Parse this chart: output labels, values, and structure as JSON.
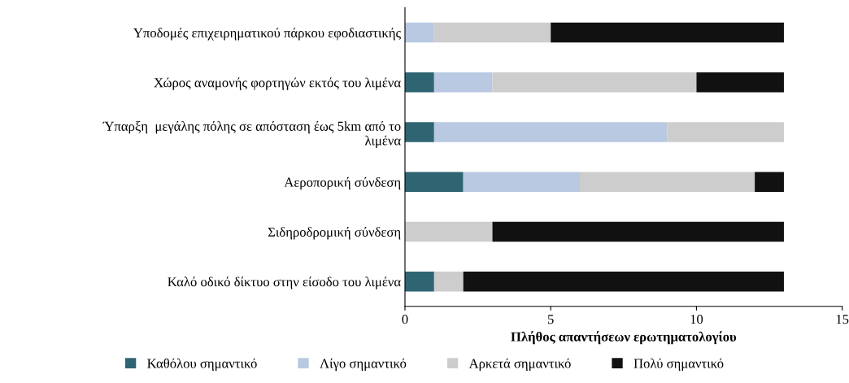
{
  "chart_data": {
    "type": "bar",
    "orientation": "horizontal",
    "stacked": true,
    "categories": [
      "Υποδομές επιχειρηματικού πάρκου εφοδιαστικής",
      "Χώρος αναμονής φορτηγών εκτός του λιμένα",
      "Ύπαρξη  μεγάλης πόλης σε απόσταση έως 5km από το λιμένα",
      "Αεροπορική σύνδεση",
      "Σιδηροδρομική σύνδεση",
      "Καλό οδικό δίκτυο στην είσοδο του λιμένα"
    ],
    "series": [
      {
        "name": "Καθόλου σημαντικό",
        "color": "#2f6473",
        "values": [
          0,
          1,
          1,
          2,
          0,
          1
        ]
      },
      {
        "name": "Λίγο σημαντικό",
        "color": "#b8c9e1",
        "values": [
          1,
          2,
          8,
          4,
          0,
          0
        ]
      },
      {
        "name": "Αρκετά σημαντικό",
        "color": "#cdcdcd",
        "values": [
          4,
          7,
          4,
          6,
          3,
          1
        ]
      },
      {
        "name": "Πολύ σημαντικό",
        "color": "#111111",
        "values": [
          8,
          3,
          0,
          1,
          10,
          11
        ]
      }
    ],
    "xlabel": "Πλήθος απαντήσεων ερωτηματολογίου",
    "xlim": [
      0,
      15
    ],
    "xticks": [
      0,
      5,
      10,
      15
    ],
    "grid": false,
    "legend": "bottom"
  }
}
